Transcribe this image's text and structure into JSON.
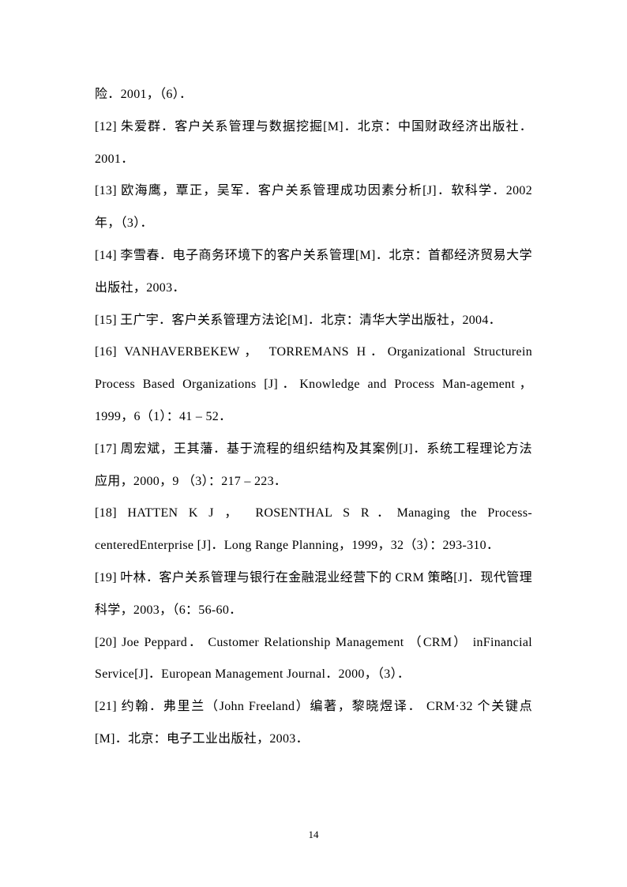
{
  "textColor": "#000000",
  "backgroundColor": "#ffffff",
  "fontSizePt": 12,
  "lineHeight": 2.55,
  "pageNumber": "14",
  "refs": [
    "险．2001，（6）．",
    "[12] 朱爱群．客户关系管理与数据挖掘[M]．北京：中国财政经济出版社．2001．",
    "[13] 欧海鹰，覃正，吴军．客户关系管理成功因素分析[J]．软科学．2002 年，（3）．",
    "[14] 李雪春．电子商务环境下的客户关系管理[M]．北京：首都经济贸易大学出版社，2003．",
    "[15] 王广宇．客户关系管理方法论[M]．北京：清华大学出版社，2004．",
    "[16] VANHAVERBEKEW， TORREMANS H．Organizational Structurein Process Based Organizations [J]．Knowledge and Process Man-agement，1999，6（1）：41 – 52．",
    "[17] 周宏斌，王其藩．基于流程的组织结构及其案例[J]．系统工程理论方法应用，2000，9 （3）：217 – 223．",
    "[18] HATTEN K J ， ROSENTHAL S R．Managing the Process-centeredEnterprise [J]．Long Range Planning，1999，32（3）：293-310．",
    "[19] 叶林．客户关系管理与银行在金融混业经营下的 CRM 策略[J]．现代管理科学，2003，（6：56-60．",
    "[20] Joe Peppard． Customer Relationship Management （CRM） inFinancial Service[J]．European Management Journal．2000，（3）．",
    "[21] 约翰．弗里兰（John Freeland）编著，黎晓煜译． CRM·32 个关键点[M]．北京：电子工业出版社，2003．"
  ]
}
